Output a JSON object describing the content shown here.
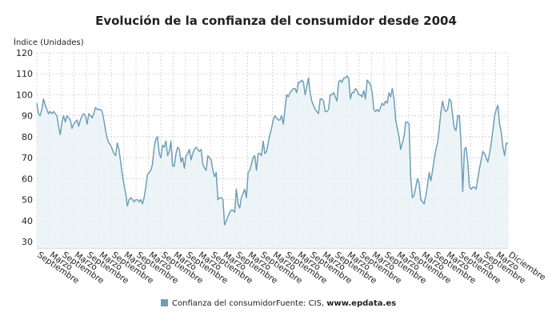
{
  "chart_data": {
    "type": "line",
    "title": "Evolución de la confianza del consumidor desde 2004",
    "ylabel": "Índice (Unidades)",
    "ylim": [
      27,
      120
    ],
    "yticks": [
      30,
      40,
      50,
      60,
      70,
      80,
      90,
      100,
      110,
      120
    ],
    "grid": true,
    "xticks": [
      "Septiembre",
      "Marzo",
      "Septiembre",
      "Marzo",
      "Septiembre",
      "Marzo",
      "Septiembre",
      "Marzo",
      "Septiembre",
      "Marzo",
      "Septiembre",
      "Marzo",
      "Septiembre",
      "Marzo",
      "Septiembre",
      "Marzo",
      "Septiembre",
      "Marzo",
      "Septiembre",
      "Marzo",
      "Septiembre",
      "Marzo",
      "Septiembre",
      "Marzo",
      "Septiembre",
      "Marzo",
      "Septiembre",
      "Marzo",
      "Septiembre",
      "Marzo",
      "Septiembre",
      "Marzo",
      "Septiembre",
      "Marzo",
      "Septiembre",
      "Marzo",
      "Septiembre",
      "Marzo",
      "Diciembre"
    ],
    "series": [
      {
        "name": "Confianza del consumidor",
        "color": "#6f9fb5",
        "values": [
          96,
          91,
          90,
          93,
          98,
          95,
          93,
          91,
          92,
          91,
          92,
          91,
          90,
          85,
          81,
          87,
          90,
          87,
          90,
          89,
          88,
          84,
          86,
          87,
          88,
          85,
          88,
          90,
          91,
          90,
          86,
          91,
          90,
          89,
          91,
          94,
          93,
          93,
          93,
          92,
          88,
          83,
          79,
          77,
          76,
          74,
          72,
          71,
          77,
          74,
          68,
          62,
          57,
          53,
          47,
          50,
          51,
          50,
          49,
          50,
          50,
          49,
          50,
          48,
          51,
          56,
          62,
          63,
          64,
          67,
          75,
          79,
          80,
          72,
          70,
          76,
          75,
          78,
          71,
          73,
          78,
          66,
          66,
          72,
          75,
          74,
          68,
          70,
          65,
          71,
          72,
          74,
          69,
          72,
          74,
          75,
          74,
          73,
          74,
          67,
          65,
          64,
          71,
          70,
          69,
          64,
          61,
          63,
          50,
          51,
          51,
          50,
          38,
          40,
          42,
          44,
          45,
          45,
          44,
          55,
          48,
          46,
          51,
          53,
          55,
          51,
          63,
          64,
          67,
          70,
          71,
          64,
          72,
          72,
          71,
          78,
          72,
          73,
          77,
          81,
          84,
          88,
          90,
          89,
          88,
          88,
          90,
          86,
          93,
          100,
          99,
          101,
          102,
          103,
          103,
          101,
          106,
          106,
          107,
          106,
          100,
          104,
          108,
          101,
          97,
          95,
          93,
          92,
          91,
          98,
          98,
          97,
          92,
          92,
          93,
          100,
          100,
          101,
          99,
          97,
          106,
          107,
          106,
          108,
          108,
          109,
          108,
          98,
          101,
          101,
          103,
          102,
          100,
          100,
          99,
          102,
          98,
          107,
          106,
          105,
          101,
          93,
          92,
          93,
          92,
          94,
          96,
          95,
          97,
          96,
          101,
          99,
          103,
          98,
          88,
          84,
          80,
          74,
          77,
          80,
          87,
          87,
          86,
          60,
          51,
          52,
          56,
          60,
          58,
          50,
          49,
          48,
          52,
          57,
          63,
          59,
          64,
          69,
          74,
          77,
          84,
          92,
          97,
          93,
          92,
          93,
          98,
          97,
          90,
          84,
          83,
          90,
          90,
          77,
          54,
          74,
          75,
          68,
          56,
          55,
          56,
          56,
          55,
          60,
          65,
          69,
          73,
          72,
          70,
          68,
          72,
          77,
          83,
          90,
          93,
          95,
          86,
          82,
          75,
          71,
          77,
          77
        ]
      }
    ],
    "legend": {
      "placement": "bottom",
      "source_prefix": "Fuente: CIS, ",
      "source_bold": "www.epdata.es"
    }
  }
}
